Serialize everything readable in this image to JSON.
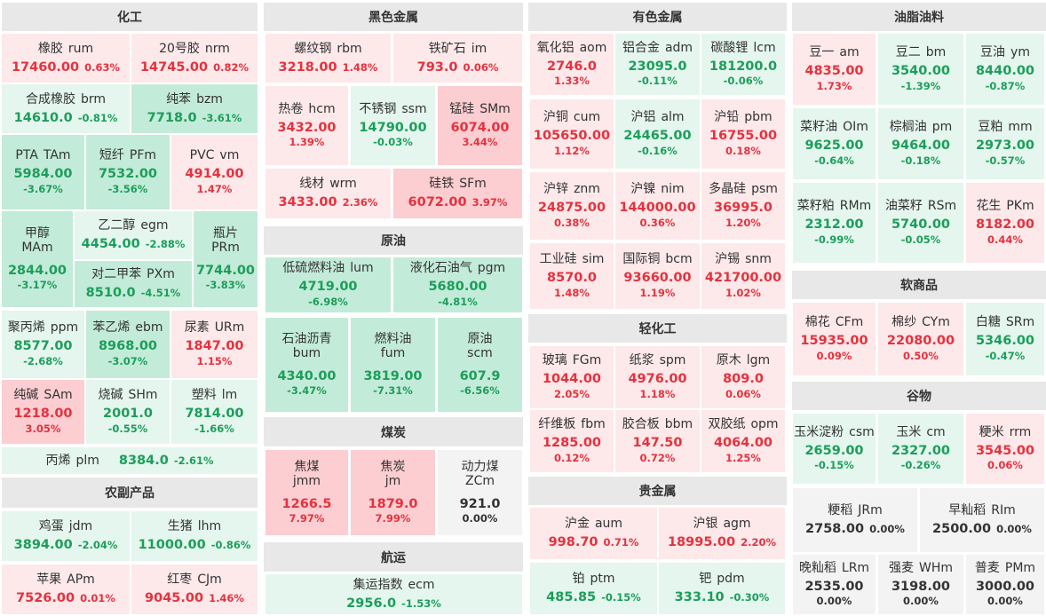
{
  "sections": [
    {
      "title": "化工",
      "items": [
        {
          "name": "橡胶",
          "code": "rum",
          "price": "17460.00",
          "change": "0.63%"
        },
        {
          "name": "20号胶",
          "code": "nrm",
          "price": "14745.00",
          "change": "0.82%"
        },
        {
          "name": "合成橡胶",
          "code": "brm",
          "price": "14610.0",
          "change": "-0.81%"
        },
        {
          "name": "纯苯",
          "code": "bzm",
          "price": "7718.0",
          "change": "-3.61%"
        },
        {
          "name": "PTA",
          "code": "TAm",
          "price": "5984.00",
          "change": "-3.67%"
        },
        {
          "name": "短纤",
          "code": "PFm",
          "price": "7532.00",
          "change": "-3.56%"
        },
        {
          "name": "PVC",
          "code": "vm",
          "price": "4914.00",
          "change": "1.47%"
        },
        {
          "name": "甲醇",
          "code": "MAm",
          "price": "2844.00",
          "change": "-3.17%"
        },
        {
          "name": "乙二醇",
          "code": "egm",
          "price": "4454.00",
          "change": "-2.88%"
        },
        {
          "name": "对二甲苯",
          "code": "PXm",
          "price": "8510.0",
          "change": "-4.51%"
        },
        {
          "name": "瓶片",
          "code": "PRm",
          "price": "7744.00",
          "change": "-3.83%"
        },
        {
          "name": "聚丙烯",
          "code": "ppm",
          "price": "8577.00",
          "change": "-2.68%"
        },
        {
          "name": "苯乙烯",
          "code": "ebm",
          "price": "8968.00",
          "change": "-3.07%"
        },
        {
          "name": "尿素",
          "code": "URm",
          "price": "1847.00",
          "change": "1.15%"
        },
        {
          "name": "纯碱",
          "code": "SAm",
          "price": "1218.00",
          "change": "3.05%"
        },
        {
          "name": "烧碱",
          "code": "SHm",
          "price": "2001.0",
          "change": "-0.55%"
        },
        {
          "name": "塑料",
          "code": "lm",
          "price": "7814.00",
          "change": "-1.66%"
        },
        {
          "name": "丙烯",
          "code": "plm",
          "price": "8384.0",
          "change": "-2.61%"
        }
      ]
    },
    {
      "title": "农副产品",
      "items": [
        {
          "name": "鸡蛋",
          "code": "jdm",
          "price": "3894.00",
          "change": "-2.04%"
        },
        {
          "name": "生猪",
          "code": "lhm",
          "price": "11000.00",
          "change": "-0.86%"
        },
        {
          "name": "苹果",
          "code": "APm",
          "price": "7526.00",
          "change": "0.01%"
        },
        {
          "name": "红枣",
          "code": "CJm",
          "price": "9045.00",
          "change": "1.46%"
        }
      ]
    },
    {
      "title": "黑色金属",
      "items": [
        {
          "name": "螺纹钢",
          "code": "rbm",
          "price": "3218.00",
          "change": "1.48%"
        },
        {
          "name": "铁矿石",
          "code": "im",
          "price": "793.0",
          "change": "0.06%"
        },
        {
          "name": "热卷",
          "code": "hcm",
          "price": "3432.00",
          "change": "1.39%"
        },
        {
          "name": "不锈钢",
          "code": "ssm",
          "price": "14790.00",
          "change": "-0.03%"
        },
        {
          "name": "锰硅",
          "code": "SMm",
          "price": "6074.00",
          "change": "3.44%"
        },
        {
          "name": "线材",
          "code": "wrm",
          "price": "3433.00",
          "change": "2.36%"
        },
        {
          "name": "硅铁",
          "code": "SFm",
          "price": "6072.00",
          "change": "3.97%"
        }
      ]
    },
    {
      "title": "原油",
      "items": [
        {
          "name": "低硫燃料油",
          "code": "lum",
          "price": "4719.00",
          "change": "-6.98%"
        },
        {
          "name": "液化石油气",
          "code": "pgm",
          "price": "5680.00",
          "change": "-4.81%"
        },
        {
          "name": "石油沥青",
          "code": "bum",
          "price": "4340.00",
          "change": "-3.47%"
        },
        {
          "name": "燃料油",
          "code": "fum",
          "price": "3819.00",
          "change": "-7.31%"
        },
        {
          "name": "原油",
          "code": "scm",
          "price": "607.9",
          "change": "-6.56%"
        }
      ]
    },
    {
      "title": "煤炭",
      "items": [
        {
          "name": "焦煤",
          "code": "jmm",
          "price": "1266.5",
          "change": "7.97%"
        },
        {
          "name": "焦炭",
          "code": "jm",
          "price": "1879.0",
          "change": "7.99%"
        },
        {
          "name": "动力煤",
          "code": "ZCm",
          "price": "921.0",
          "change": "0.00%"
        }
      ]
    },
    {
      "title": "航运",
      "items": [
        {
          "name": "集运指数",
          "code": "ecm",
          "price": "2956.0",
          "change": "-1.53%"
        }
      ]
    },
    {
      "title": "有色金属",
      "items": [
        {
          "name": "氧化铝",
          "code": "aom",
          "price": "2746.0",
          "change": "1.33%"
        },
        {
          "name": "铝合金",
          "code": "adm",
          "price": "23095.0",
          "change": "-0.11%"
        },
        {
          "name": "碳酸锂",
          "code": "lcm",
          "price": "181200.0",
          "change": "-0.06%"
        },
        {
          "name": "沪铜",
          "code": "cum",
          "price": "105650.00",
          "change": "1.12%"
        },
        {
          "name": "沪铝",
          "code": "alm",
          "price": "24465.00",
          "change": "-0.16%"
        },
        {
          "name": "沪铅",
          "code": "pbm",
          "price": "16755.00",
          "change": "0.18%"
        },
        {
          "name": "沪锌",
          "code": "znm",
          "price": "24875.00",
          "change": "0.38%"
        },
        {
          "name": "沪镍",
          "code": "nim",
          "price": "144000.00",
          "change": "0.36%"
        },
        {
          "name": "多晶硅",
          "code": "psm",
          "price": "36995.0",
          "change": "1.20%"
        },
        {
          "name": "工业硅",
          "code": "sim",
          "price": "8570.0",
          "change": "1.48%"
        },
        {
          "name": "国际铜",
          "code": "bcm",
          "price": "93660.00",
          "change": "1.19%"
        },
        {
          "name": "沪锡",
          "code": "snm",
          "price": "421700.00",
          "change": "1.02%"
        }
      ]
    },
    {
      "title": "轻化工",
      "items": [
        {
          "name": "玻璃",
          "code": "FGm",
          "price": "1044.00",
          "change": "2.05%"
        },
        {
          "name": "纸浆",
          "code": "spm",
          "price": "4976.00",
          "change": "1.18%"
        },
        {
          "name": "原木",
          "code": "lgm",
          "price": "809.0",
          "change": "0.06%"
        },
        {
          "name": "纤维板",
          "code": "fbm",
          "price": "1285.00",
          "change": "0.12%"
        },
        {
          "name": "胶合板",
          "code": "bbm",
          "price": "147.50",
          "change": "0.72%"
        },
        {
          "name": "双胶纸",
          "code": "opm",
          "price": "4064.00",
          "change": "1.25%"
        }
      ]
    },
    {
      "title": "贵金属",
      "items": [
        {
          "name": "沪金",
          "code": "aum",
          "price": "998.70",
          "change": "0.71%"
        },
        {
          "name": "沪银",
          "code": "agm",
          "price": "18995.00",
          "change": "2.20%"
        },
        {
          "name": "铂",
          "code": "ptm",
          "price": "485.85",
          "change": "-0.15%"
        },
        {
          "name": "钯",
          "code": "pdm",
          "price": "333.10",
          "change": "-0.30%"
        }
      ]
    },
    {
      "title": "油脂油料",
      "items": [
        {
          "name": "豆一",
          "code": "am",
          "price": "4835.00",
          "change": "1.73%"
        },
        {
          "name": "豆二",
          "code": "bm",
          "price": "3540.00",
          "change": "-1.39%"
        },
        {
          "name": "豆油",
          "code": "ym",
          "price": "8440.00",
          "change": "-0.87%"
        },
        {
          "name": "菜籽油",
          "code": "OIm",
          "price": "9625.00",
          "change": "-0.64%"
        },
        {
          "name": "棕榈油",
          "code": "pm",
          "price": "9464.00",
          "change": "-0.18%"
        },
        {
          "name": "豆粕",
          "code": "mm",
          "price": "2973.00",
          "change": "-0.57%"
        },
        {
          "name": "菜籽粕",
          "code": "RMm",
          "price": "2312.00",
          "change": "-0.99%"
        },
        {
          "name": "油菜籽",
          "code": "RSm",
          "price": "5740.00",
          "change": "-0.05%"
        },
        {
          "name": "花生",
          "code": "PKm",
          "price": "8182.00",
          "change": "0.44%"
        }
      ]
    },
    {
      "title": "软商品",
      "items": [
        {
          "name": "棉花",
          "code": "CFm",
          "price": "15935.00",
          "change": "0.09%"
        },
        {
          "name": "棉纱",
          "code": "CYm",
          "price": "22080.00",
          "change": "0.50%"
        },
        {
          "name": "白糖",
          "code": "SRm",
          "price": "5346.00",
          "change": "-0.47%"
        }
      ]
    },
    {
      "title": "谷物",
      "items": [
        {
          "name": "玉米淀粉",
          "code": "csm",
          "price": "2659.00",
          "change": "-0.15%"
        },
        {
          "name": "玉米",
          "code": "cm",
          "price": "2327.00",
          "change": "-0.26%"
        },
        {
          "name": "粳米",
          "code": "rrm",
          "price": "3545.00",
          "change": "0.06%"
        },
        {
          "name": "粳稻",
          "code": "JRm",
          "price": "2758.00",
          "change": "0.00%"
        },
        {
          "name": "早籼稻",
          "code": "RIm",
          "price": "2500.00",
          "change": "0.00%"
        },
        {
          "name": "晚籼稻",
          "code": "LRm",
          "price": "2535.00",
          "change": "0.00%"
        },
        {
          "name": "强麦",
          "code": "WHm",
          "price": "3198.00",
          "change": "0.00%"
        },
        {
          "name": "普麦",
          "code": "PMm",
          "price": "3000.00",
          "change": "0.00%"
        }
      ]
    }
  ]
}
